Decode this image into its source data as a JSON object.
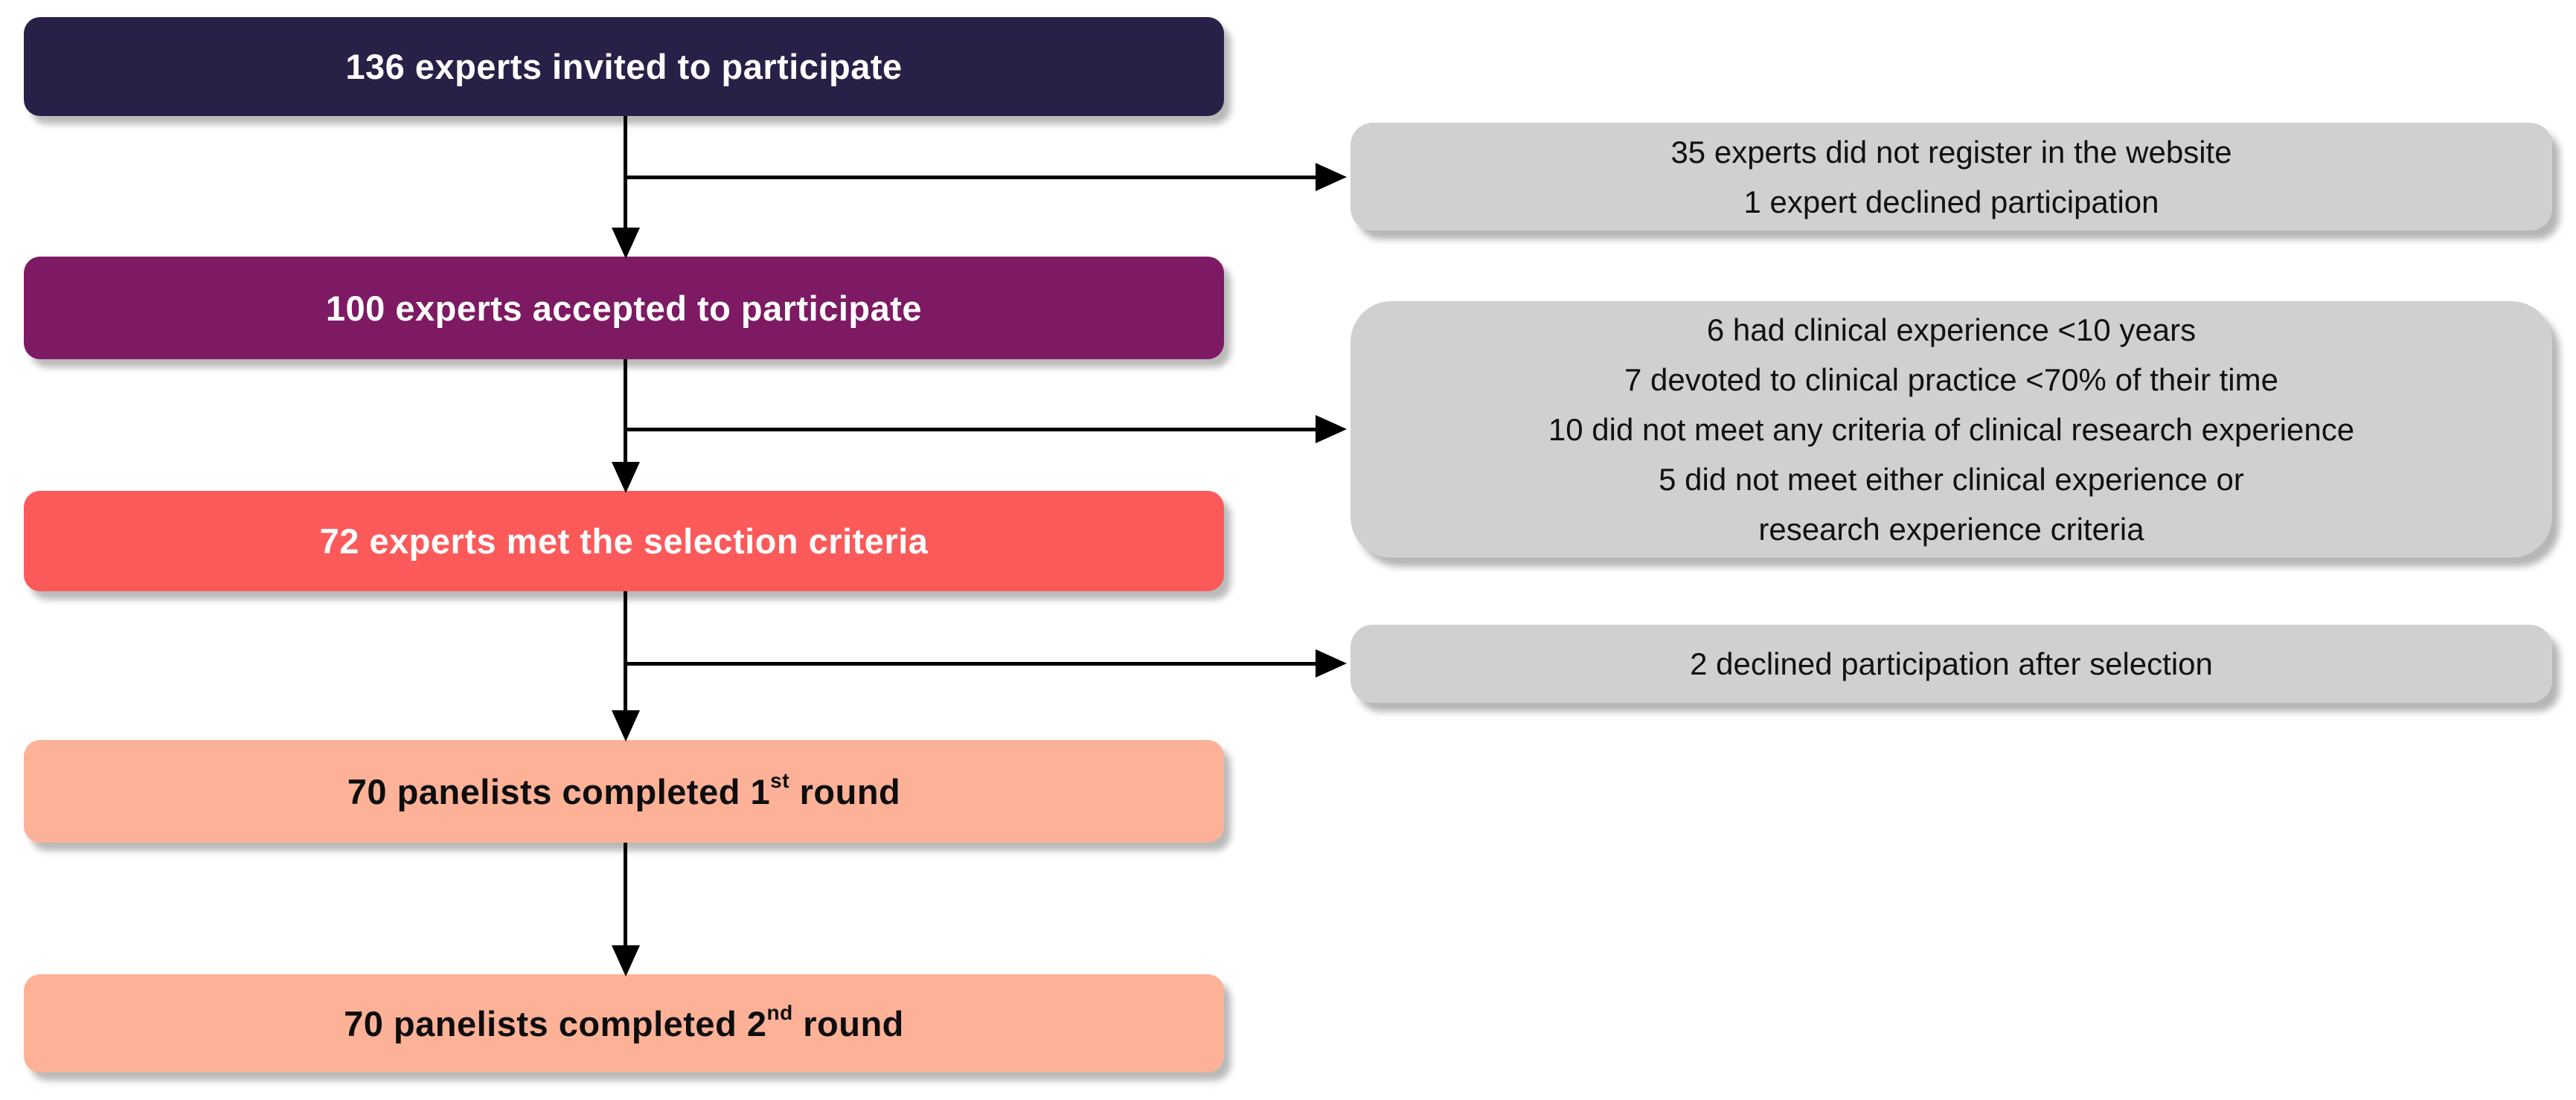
{
  "stages": [
    {
      "id": "invited",
      "text": "136 experts invited to participate"
    },
    {
      "id": "accepted",
      "text": "100 experts accepted to participate"
    },
    {
      "id": "met_criteria",
      "text": "72 experts met the selection criteria"
    },
    {
      "id": "round1",
      "text_prefix": "70 panelists completed 1",
      "ordinal_suffix": "st",
      "text_suffix": " round"
    },
    {
      "id": "round2",
      "text_prefix": "70 panelists completed 2",
      "ordinal_suffix": "nd",
      "text_suffix": " round"
    }
  ],
  "exclusions": [
    {
      "lines": [
        "35 experts did not register in the website",
        "1 expert declined participation"
      ]
    },
    {
      "lines": [
        "6 had clinical experience <10 years",
        "7 devoted to clinical practice <70% of their time",
        "10 did not meet any criteria of clinical research experience",
        "5 did not meet either clinical experience or",
        "research experience criteria"
      ]
    },
    {
      "lines": [
        "2 declined participation after selection"
      ]
    }
  ],
  "colors": {
    "stage_invited": "#292048",
    "stage_accepted": "#7D1A63",
    "stage_met_criteria": "#FC5A5A",
    "stage_rounds": "#FDB197",
    "exclusion_box": "#D1D0CE",
    "arrow": "#000000",
    "stage_text_light": "#FFFFFF",
    "stage_text_dark": "#0D0D0D"
  }
}
